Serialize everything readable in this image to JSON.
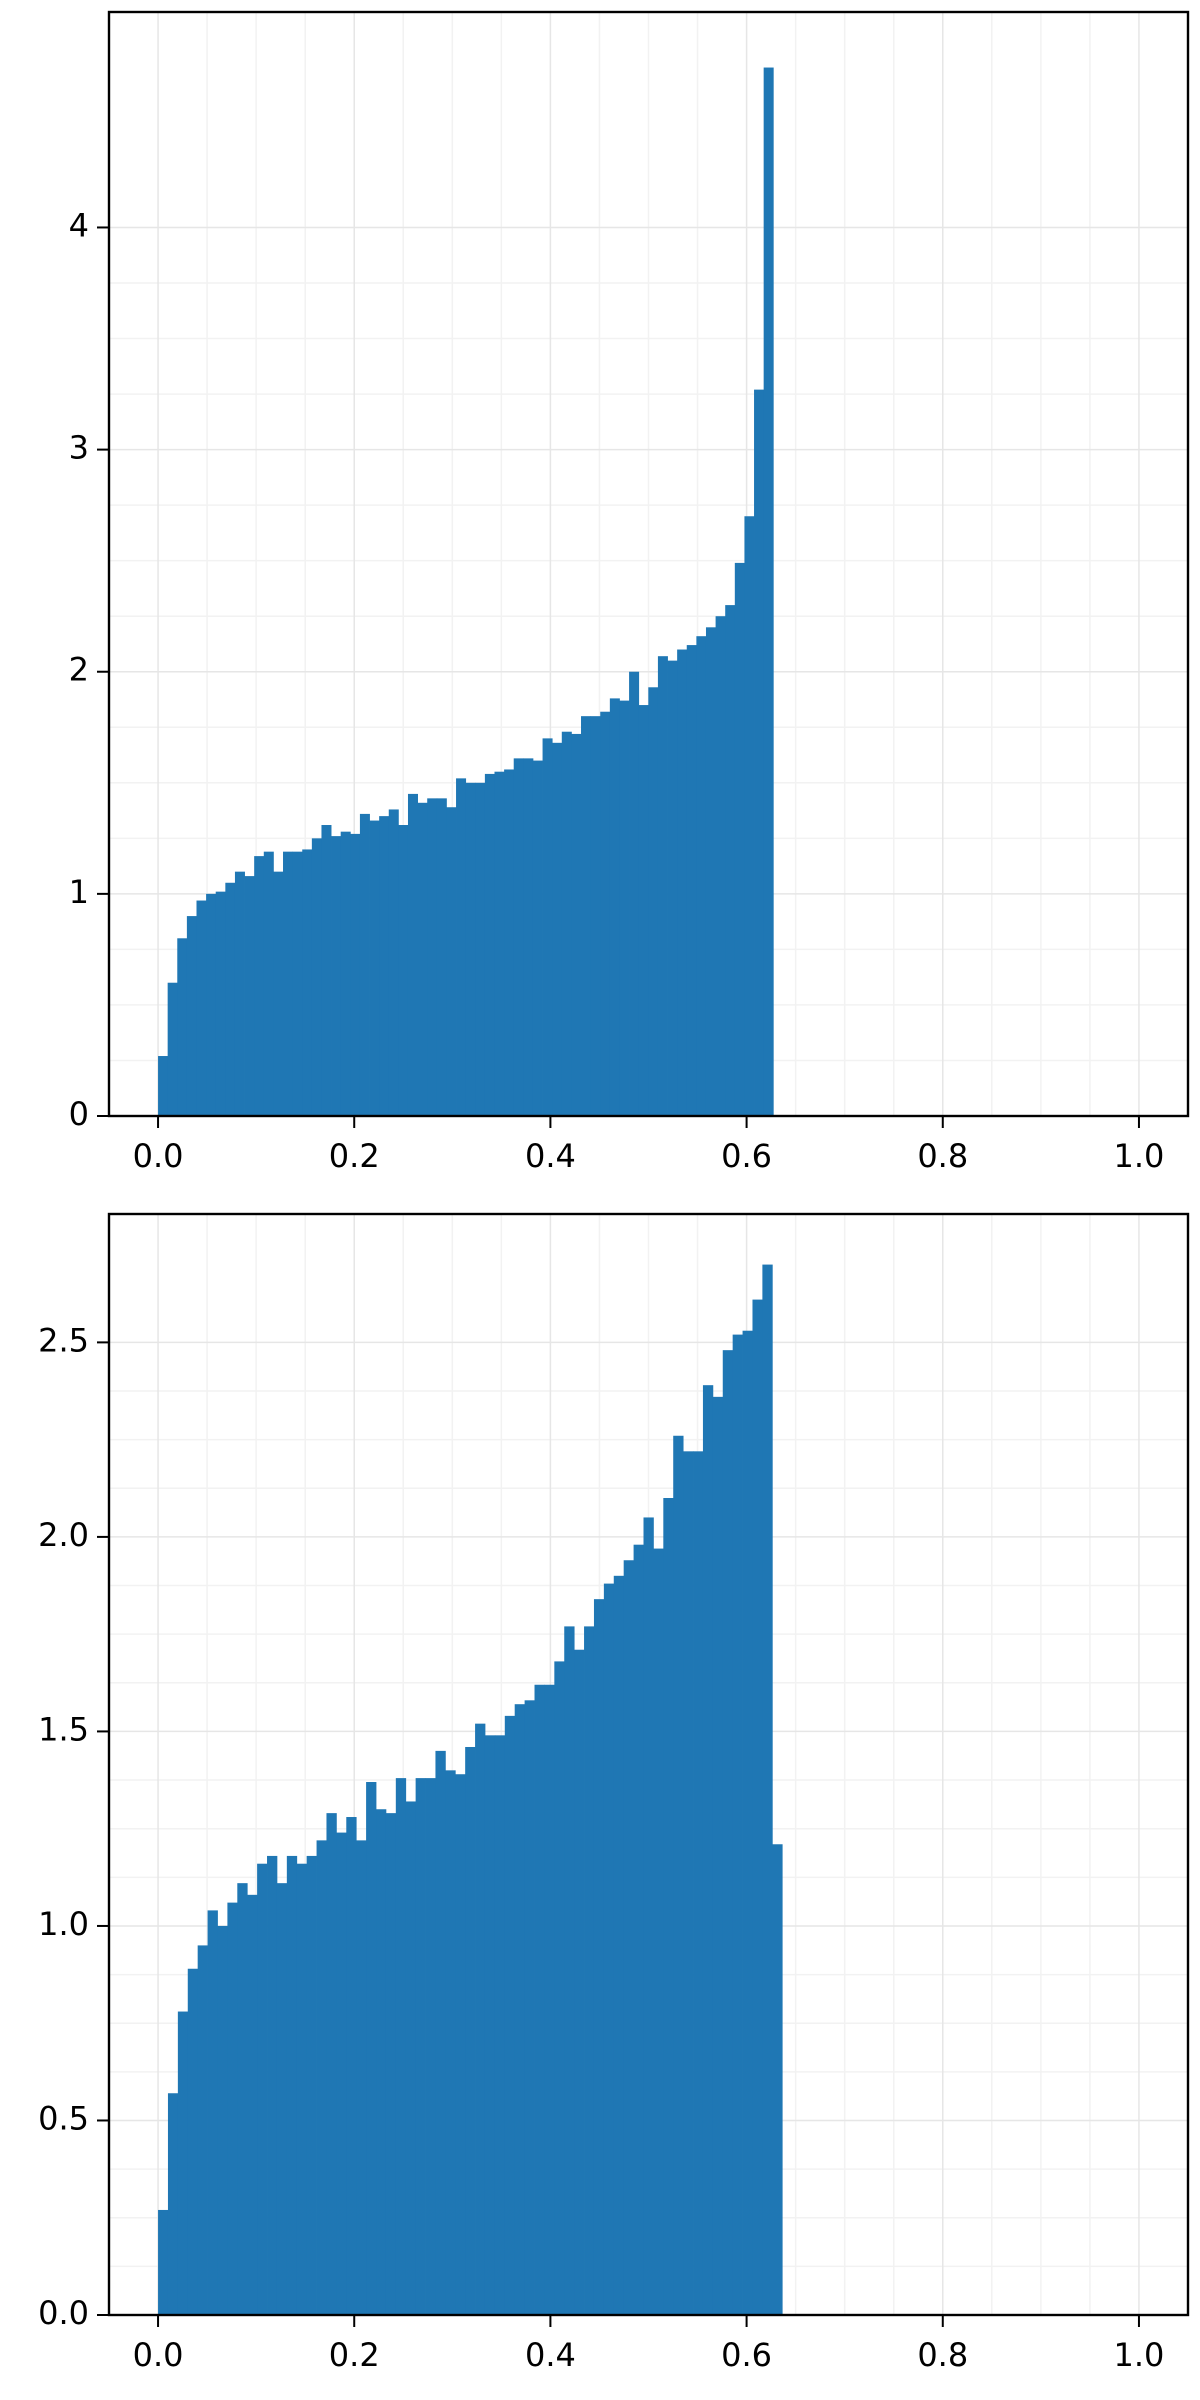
{
  "chart_data": [
    {
      "type": "histogram",
      "color": "#1f77b4",
      "grid": true,
      "bins": [
        0,
        0.0098,
        0.0196,
        0.0294,
        0.0392,
        0.049,
        0.0588,
        0.0686,
        0.0784,
        0.0882,
        0.098,
        0.1078,
        0.1176,
        0.1274,
        0.1372,
        0.147,
        0.1568,
        0.1666,
        0.1764,
        0.1862,
        0.196,
        0.2058,
        0.2156,
        0.2254,
        0.2352,
        0.245,
        0.2548,
        0.2646,
        0.2744,
        0.2842,
        0.294,
        0.3038,
        0.3136,
        0.3234,
        0.3332,
        0.343,
        0.3528,
        0.3626,
        0.3724,
        0.3822,
        0.392,
        0.4018,
        0.4116,
        0.4214,
        0.4312,
        0.441,
        0.4508,
        0.4606,
        0.4704,
        0.4802,
        0.49,
        0.4998,
        0.5096,
        0.5194,
        0.5292,
        0.539,
        0.5488,
        0.5586,
        0.5684,
        0.5782,
        0.588,
        0.5978,
        0.6076,
        0.6174,
        0.6272
      ],
      "values": [
        0.27,
        0.6,
        0.8,
        0.9,
        0.97,
        1.0,
        1.01,
        1.05,
        1.1,
        1.08,
        1.17,
        1.19,
        1.1,
        1.19,
        1.19,
        1.2,
        1.25,
        1.31,
        1.26,
        1.28,
        1.27,
        1.36,
        1.33,
        1.35,
        1.38,
        1.31,
        1.45,
        1.41,
        1.43,
        1.43,
        1.39,
        1.52,
        1.5,
        1.5,
        1.54,
        1.55,
        1.56,
        1.61,
        1.61,
        1.6,
        1.7,
        1.68,
        1.73,
        1.72,
        1.8,
        1.8,
        1.82,
        1.88,
        1.87,
        2.0,
        1.85,
        1.93,
        2.07,
        2.05,
        2.1,
        2.12,
        2.16,
        2.2,
        2.25,
        2.3,
        2.49,
        2.7,
        3.27,
        4.72
      ],
      "xlim": [
        -0.05,
        1.05
      ],
      "xticks": [
        {
          "value": 0,
          "label": "0.0"
        },
        0.2,
        0.4,
        0.6,
        0.8,
        {
          "value": 1,
          "label": "1.0"
        }
      ],
      "ylim": [
        0,
        4.97
      ],
      "yticks": [
        0,
        1,
        2,
        3,
        4
      ]
    },
    {
      "type": "histogram",
      "color": "#1f77b4",
      "grid": true,
      "bins": [
        0,
        0.0101,
        0.0202,
        0.0303,
        0.0404,
        0.0505,
        0.0606,
        0.0707,
        0.0808,
        0.0909,
        0.101,
        0.1111,
        0.1212,
        0.1313,
        0.1414,
        0.1515,
        0.1616,
        0.1717,
        0.1818,
        0.1919,
        0.202,
        0.2121,
        0.2222,
        0.2323,
        0.2424,
        0.2525,
        0.2626,
        0.2727,
        0.2828,
        0.2929,
        0.303,
        0.3131,
        0.3232,
        0.3333,
        0.3434,
        0.3535,
        0.3636,
        0.3737,
        0.3838,
        0.3939,
        0.404,
        0.4141,
        0.4242,
        0.4343,
        0.4444,
        0.4545,
        0.4646,
        0.4747,
        0.4848,
        0.4949,
        0.505,
        0.5151,
        0.5252,
        0.5353,
        0.5454,
        0.5555,
        0.5656,
        0.5757,
        0.5858,
        0.5959,
        0.606,
        0.6161,
        0.6262,
        0.6363
      ],
      "values": [
        0.27,
        0.57,
        0.78,
        0.89,
        0.95,
        1.04,
        1.0,
        1.06,
        1.11,
        1.08,
        1.16,
        1.18,
        1.11,
        1.18,
        1.16,
        1.18,
        1.22,
        1.29,
        1.24,
        1.28,
        1.22,
        1.37,
        1.3,
        1.29,
        1.38,
        1.32,
        1.38,
        1.38,
        1.45,
        1.4,
        1.39,
        1.46,
        1.52,
        1.49,
        1.49,
        1.54,
        1.57,
        1.58,
        1.62,
        1.62,
        1.68,
        1.77,
        1.71,
        1.77,
        1.84,
        1.88,
        1.9,
        1.94,
        1.98,
        2.05,
        1.97,
        2.1,
        2.26,
        2.22,
        2.22,
        2.39,
        2.36,
        2.48,
        2.52,
        2.53,
        2.61,
        2.7,
        1.21
      ],
      "xlim": [
        -0.05,
        1.05
      ],
      "xticks": [
        {
          "value": 0,
          "label": "0.0"
        },
        0.2,
        0.4,
        0.6,
        0.8,
        {
          "value": 1,
          "label": "1.0"
        }
      ],
      "ylim": [
        0,
        2.83
      ],
      "yticks": [
        {
          "value": 0,
          "label": "0.0"
        },
        0.5,
        {
          "value": 1,
          "label": "1.0"
        },
        1.5,
        {
          "value": 2,
          "label": "2.0"
        },
        2.5
      ]
    }
  ]
}
